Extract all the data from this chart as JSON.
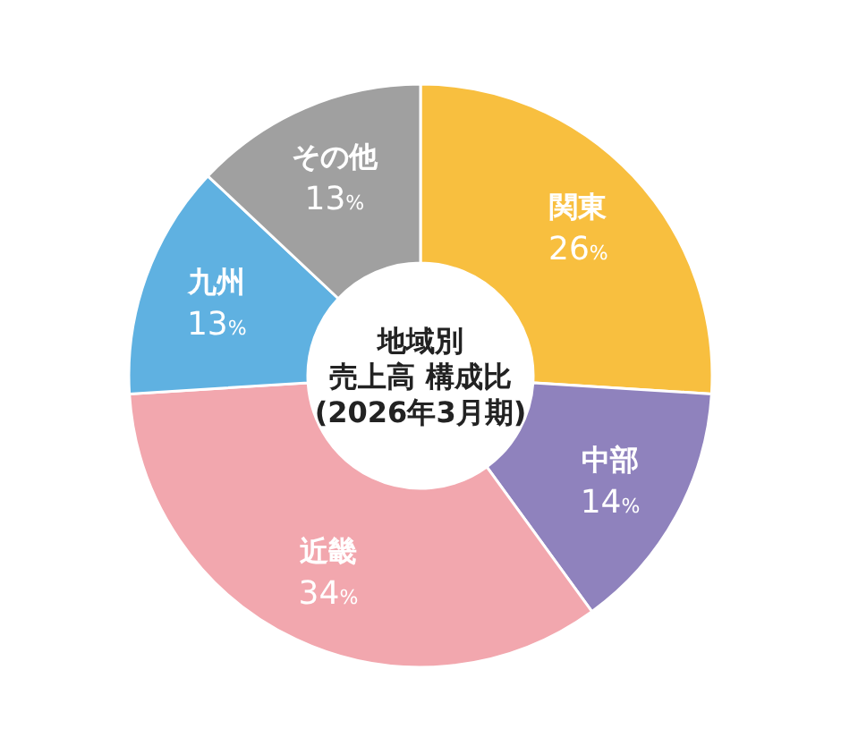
{
  "chart_data": {
    "type": "donut",
    "title": "地域別",
    "subtitle": "売上高 構成比",
    "annotations": [
      "(2026年3月期)"
    ],
    "categories": [
      "関東",
      "中部",
      "近畿",
      "九州",
      "その他"
    ],
    "values": [
      26,
      14,
      34,
      13,
      13
    ],
    "value_labels": [
      "26%",
      "14%",
      "34%",
      "13%",
      "13%"
    ],
    "colors": [
      "#f8bf3f",
      "#8f82bd",
      "#f2a7ae",
      "#5fb1e1",
      "#a0a0a0"
    ]
  }
}
